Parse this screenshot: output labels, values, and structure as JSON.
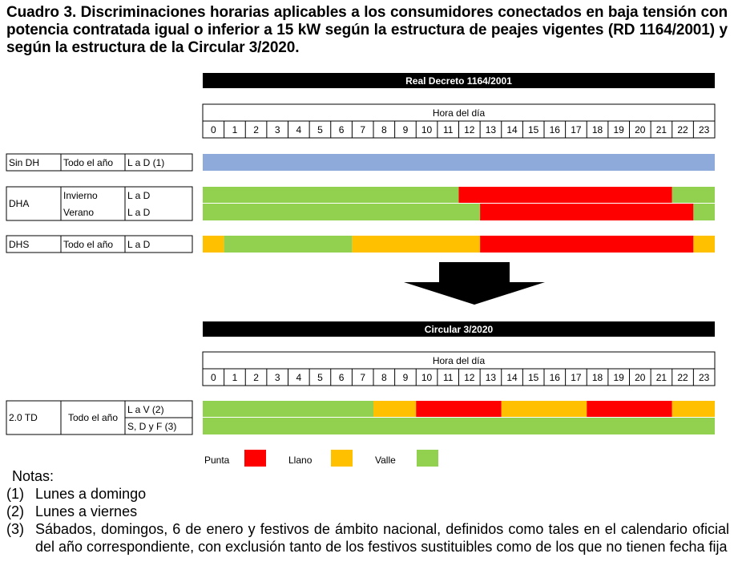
{
  "title": "Cuadro 3. Discriminaciones horarias aplicables a los consumidores conectados en baja tensión con potencia contratada igual o inferior a 15 kW según la estructura de peajes vigentes (RD 1164/2001) y según la estructura de la Circular 3/2020.",
  "colors": {
    "punta": "#ff0000",
    "llano": "#ffc000",
    "valle": "#92d050",
    "sin_dh": "#8eaadb",
    "header_bg": "#000000"
  },
  "hours": [
    "0",
    "1",
    "2",
    "3",
    "4",
    "5",
    "6",
    "7",
    "8",
    "9",
    "10",
    "11",
    "12",
    "13",
    "14",
    "15",
    "16",
    "17",
    "18",
    "19",
    "20",
    "21",
    "22",
    "23"
  ],
  "sections": [
    {
      "header": "Real Decreto 1164/2001",
      "hora_label": "Hora del día",
      "groups": [
        {
          "name": "Sin DH",
          "rows": [
            {
              "season": "Todo el año",
              "days": "L a D (1)",
              "segments": [
                {
                  "from": 0,
                  "to": 24,
                  "period": "sin_dh"
                }
              ]
            }
          ]
        },
        {
          "name": "DHA",
          "rows": [
            {
              "season": "Invierno",
              "days": "L a D",
              "segments": [
                {
                  "from": 0,
                  "to": 12,
                  "period": "valle"
                },
                {
                  "from": 12,
                  "to": 22,
                  "period": "punta"
                },
                {
                  "from": 22,
                  "to": 24,
                  "period": "valle"
                }
              ]
            },
            {
              "season": "Verano",
              "days": "L a D",
              "segments": [
                {
                  "from": 0,
                  "to": 13,
                  "period": "valle"
                },
                {
                  "from": 13,
                  "to": 23,
                  "period": "punta"
                },
                {
                  "from": 23,
                  "to": 24,
                  "period": "valle"
                }
              ]
            }
          ]
        },
        {
          "name": "DHS",
          "rows": [
            {
              "season": "Todo el año",
              "days": "L a D",
              "segments": [
                {
                  "from": 0,
                  "to": 1,
                  "period": "llano"
                },
                {
                  "from": 1,
                  "to": 7,
                  "period": "valle"
                },
                {
                  "from": 7,
                  "to": 13,
                  "period": "llano"
                },
                {
                  "from": 13,
                  "to": 23,
                  "period": "punta"
                },
                {
                  "from": 23,
                  "to": 24,
                  "period": "llano"
                }
              ]
            }
          ]
        }
      ]
    },
    {
      "header": "Circular 3/2020",
      "hora_label": "Hora del día",
      "groups": [
        {
          "name": "2.0 TD",
          "season": "Todo el año",
          "rows": [
            {
              "days": "L a V (2)",
              "segments": [
                {
                  "from": 0,
                  "to": 8,
                  "period": "valle"
                },
                {
                  "from": 8,
                  "to": 10,
                  "period": "llano"
                },
                {
                  "from": 10,
                  "to": 14,
                  "period": "punta"
                },
                {
                  "from": 14,
                  "to": 18,
                  "period": "llano"
                },
                {
                  "from": 18,
                  "to": 22,
                  "period": "punta"
                },
                {
                  "from": 22,
                  "to": 24,
                  "period": "llano"
                }
              ]
            },
            {
              "days": "S, D y F (3)",
              "segments": [
                {
                  "from": 0,
                  "to": 24,
                  "period": "valle"
                }
              ]
            }
          ]
        }
      ]
    }
  ],
  "legend": [
    {
      "label": "Punta",
      "period": "punta"
    },
    {
      "label": "Llano",
      "period": "llano"
    },
    {
      "label": "Valle",
      "period": "valle"
    }
  ],
  "notes": {
    "heading": "Notas:",
    "items": [
      {
        "num": "(1)",
        "text": "Lunes a domingo"
      },
      {
        "num": "(2)",
        "text": "Lunes a viernes"
      },
      {
        "num": "(3)",
        "text": "Sábados, domingos, 6 de enero y festivos de ámbito nacional, definidos como tales en el calendario oficial del año correspondiente, con exclusión tanto de los festivos sustituibles como de los que no tienen fecha fija"
      }
    ]
  }
}
